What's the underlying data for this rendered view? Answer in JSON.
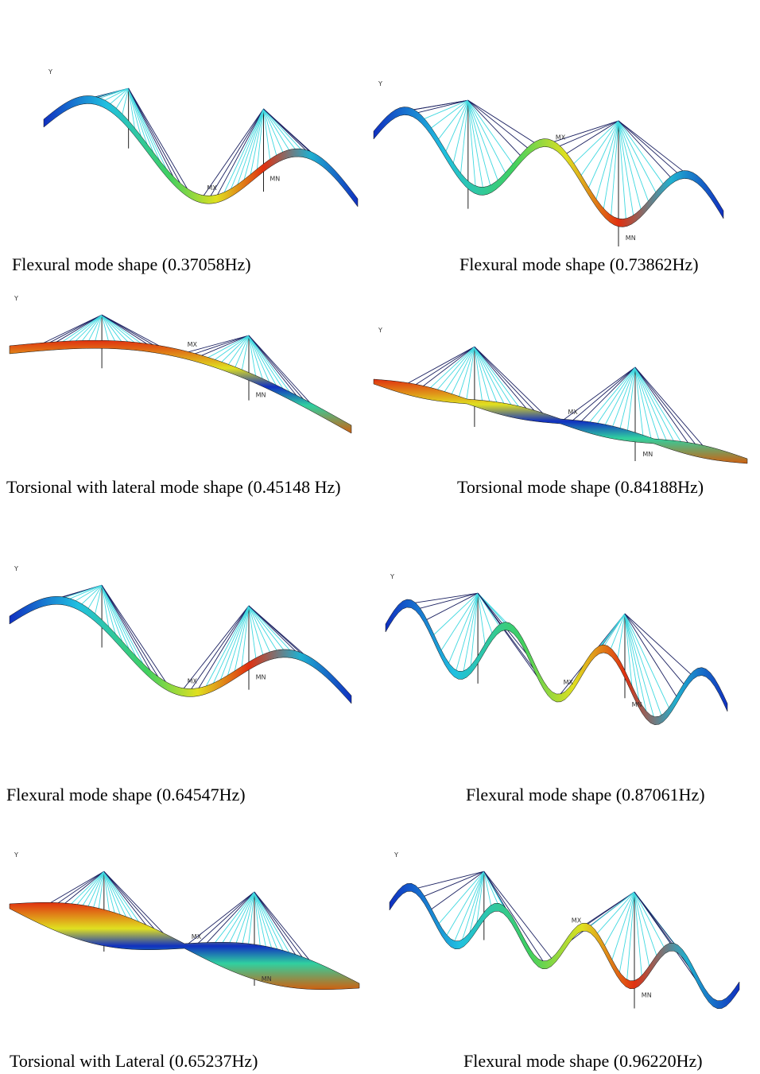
{
  "panels": [
    {
      "caption": "Flexural mode shape (0.37058Hz)",
      "axis": "Y",
      "max": "MX",
      "min": "MN"
    },
    {
      "caption": "Flexural mode shape (0.73862Hz)",
      "axis": "Y",
      "max": "MX",
      "min": "MN"
    },
    {
      "caption": "Torsional with lateral mode shape (0.45148 Hz)",
      "axis": "Y",
      "max": "MX",
      "min": "MN"
    },
    {
      "caption": "Torsional mode shape (0.84188Hz)",
      "axis": "Y",
      "max": "MX",
      "min": "MN"
    },
    {
      "caption": "Flexural mode shape (0.64547Hz)",
      "axis": "Y",
      "max": "MX",
      "min": "MN"
    },
    {
      "caption": "Flexural mode shape (0.87061Hz)",
      "axis": "Y",
      "max": "MX",
      "min": "MN"
    },
    {
      "caption": "Torsional with Lateral (0.65237Hz)",
      "axis": "Y",
      "max": "MX",
      "min": "MN"
    },
    {
      "caption": "Flexural mode shape (0.96220Hz)",
      "axis": "Y",
      "max": "MX",
      "min": "MN"
    }
  ]
}
